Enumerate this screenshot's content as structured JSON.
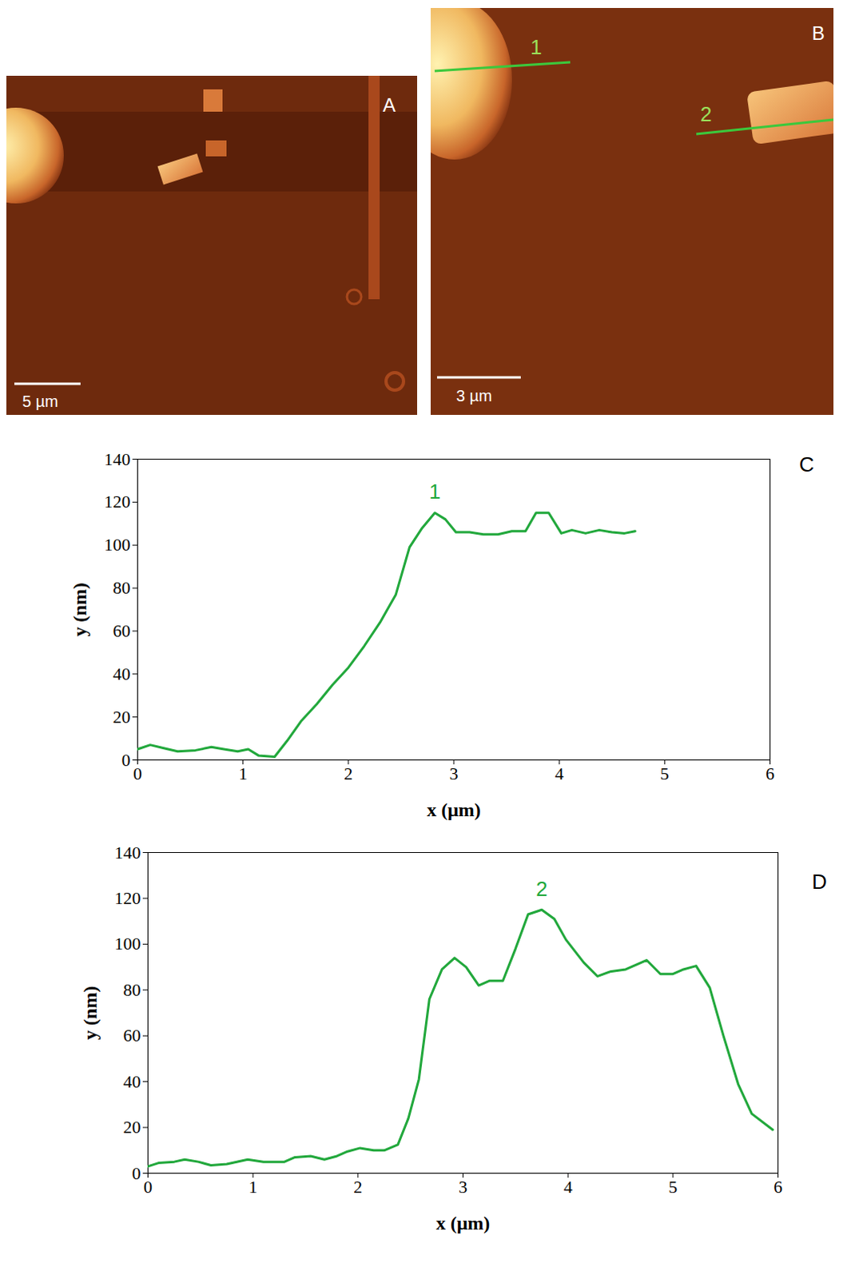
{
  "images": [
    {
      "label": "A",
      "scale_bar": "5 µm"
    },
    {
      "label": "B",
      "scale_bar": "3 µm",
      "profiles": [
        "1",
        "2"
      ]
    }
  ],
  "chart_data": [
    {
      "type": "line",
      "panel": "C",
      "x_label": "x (μm)",
      "y_label": "y (nm)",
      "xlim": [
        0,
        6
      ],
      "xticks": [
        0,
        1,
        2,
        3,
        4,
        5,
        6
      ],
      "ylim": [
        0,
        140
      ],
      "yticks": [
        0,
        20,
        40,
        60,
        80,
        100,
        120,
        140
      ],
      "x": [
        0,
        0.12,
        0.25,
        0.38,
        0.55,
        0.7,
        0.82,
        0.95,
        1.05,
        1.15,
        1.3,
        1.42,
        1.55,
        1.7,
        1.85,
        2.0,
        2.15,
        2.3,
        2.45,
        2.58,
        2.7,
        2.82,
        2.92,
        3.02,
        3.15,
        3.28,
        3.42,
        3.55,
        3.68,
        3.78,
        3.9,
        4.02,
        4.12,
        4.25,
        4.38,
        4.5,
        4.62,
        4.72
      ],
      "series": [
        {
          "name": "1",
          "color": "#22a83c",
          "values": [
            5,
            7,
            5.5,
            4,
            4.5,
            6,
            5,
            4,
            5,
            2,
            1.5,
            9,
            18,
            26,
            35,
            43,
            53,
            64,
            77,
            99,
            108,
            115,
            112,
            106,
            106,
            105,
            105,
            106.5,
            106.5,
            115,
            115,
            105.5,
            107,
            105.5,
            107,
            106,
            105.5,
            106.5
          ]
        }
      ]
    },
    {
      "type": "line",
      "panel": "D",
      "x_label": "x (μm)",
      "y_label": "y (nm)",
      "xlim": [
        0,
        6
      ],
      "xticks": [
        0,
        1,
        2,
        3,
        4,
        5,
        6
      ],
      "ylim": [
        0,
        140
      ],
      "yticks": [
        0,
        20,
        40,
        60,
        80,
        100,
        120,
        140
      ],
      "x": [
        0,
        0.1,
        0.25,
        0.35,
        0.48,
        0.6,
        0.75,
        0.95,
        1.1,
        1.3,
        1.4,
        1.55,
        1.68,
        1.8,
        1.9,
        2.02,
        2.15,
        2.25,
        2.38,
        2.48,
        2.58,
        2.68,
        2.8,
        2.92,
        3.03,
        3.15,
        3.25,
        3.38,
        3.5,
        3.62,
        3.75,
        3.87,
        3.98,
        4.15,
        4.28,
        4.4,
        4.55,
        4.65,
        4.75,
        4.88,
        5.0,
        5.1,
        5.22,
        5.35,
        5.48,
        5.62,
        5.75,
        5.95
      ],
      "series": [
        {
          "name": "2",
          "color": "#22a83c",
          "values": [
            3,
            4.5,
            5,
            6,
            5,
            3.5,
            4,
            6,
            5,
            5,
            7,
            7.5,
            6,
            7.5,
            9.5,
            11,
            10,
            10,
            12.5,
            24,
            41,
            76,
            89,
            94,
            90,
            82,
            84,
            84,
            98,
            113,
            115,
            111,
            102,
            92,
            86,
            88,
            89,
            91,
            93,
            87,
            87,
            89,
            90.5,
            81,
            60,
            39,
            26,
            19
          ]
        }
      ]
    }
  ]
}
